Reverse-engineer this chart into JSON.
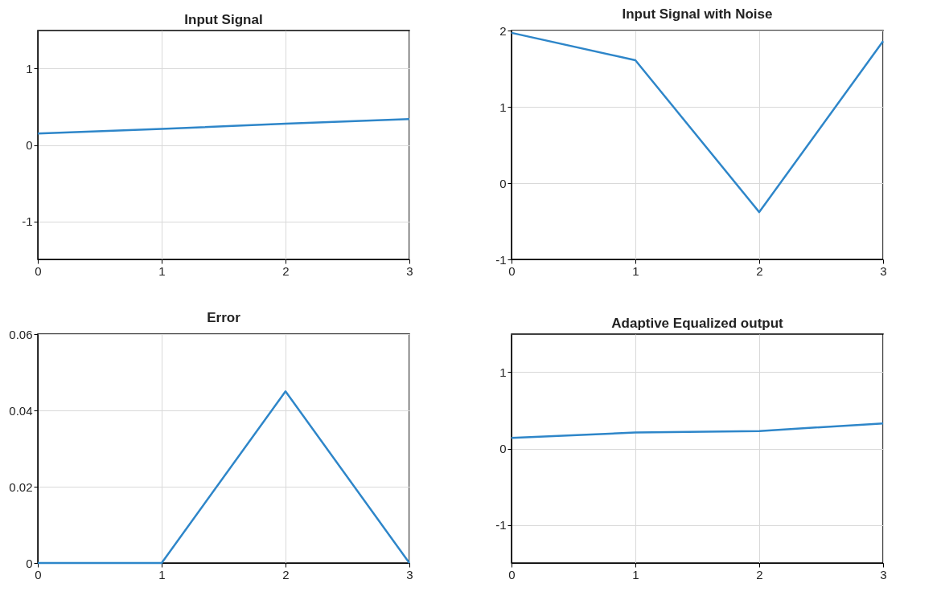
{
  "chart_data": [
    {
      "type": "line",
      "title": "Input Signal",
      "x": [
        0,
        1,
        2,
        3
      ],
      "series": [
        {
          "color": "#2e86c9",
          "values": [
            0.15,
            0.21,
            0.28,
            0.34
          ]
        }
      ],
      "xlim": [
        0,
        3
      ],
      "xticks": [
        0,
        1,
        2,
        3
      ],
      "ylim": [
        -1.5,
        1.5
      ],
      "yticks": [
        -1,
        0,
        1
      ],
      "grid": true
    },
    {
      "type": "line",
      "title": "Input Signal with Noise",
      "x": [
        0,
        1,
        2,
        3
      ],
      "series": [
        {
          "color": "#2e86c9",
          "values": [
            1.97,
            1.61,
            -0.38,
            1.86
          ]
        }
      ],
      "xlim": [
        0,
        3
      ],
      "xticks": [
        0,
        1,
        2,
        3
      ],
      "ylim": [
        -1,
        2
      ],
      "yticks": [
        -1,
        0,
        1,
        2
      ],
      "grid": true
    },
    {
      "type": "line",
      "title": "Error",
      "x": [
        0,
        1,
        2,
        3
      ],
      "series": [
        {
          "color": "#2e86c9",
          "values": [
            0,
            0,
            0.045,
            0
          ]
        }
      ],
      "xlim": [
        0,
        3
      ],
      "xticks": [
        0,
        1,
        2,
        3
      ],
      "ylim": [
        0,
        0.06
      ],
      "yticks": [
        0,
        0.02,
        0.04,
        0.06
      ],
      "grid": true
    },
    {
      "type": "line",
      "title": "Adaptive Equalized output",
      "x": [
        0,
        1,
        2,
        3
      ],
      "series": [
        {
          "color": "#2e86c9",
          "values": [
            0.14,
            0.21,
            0.23,
            0.33
          ]
        }
      ],
      "xlim": [
        0,
        3
      ],
      "xticks": [
        0,
        1,
        2,
        3
      ],
      "ylim": [
        -1.5,
        1.5
      ],
      "yticks": [
        -1,
        0,
        1
      ],
      "grid": true
    }
  ]
}
